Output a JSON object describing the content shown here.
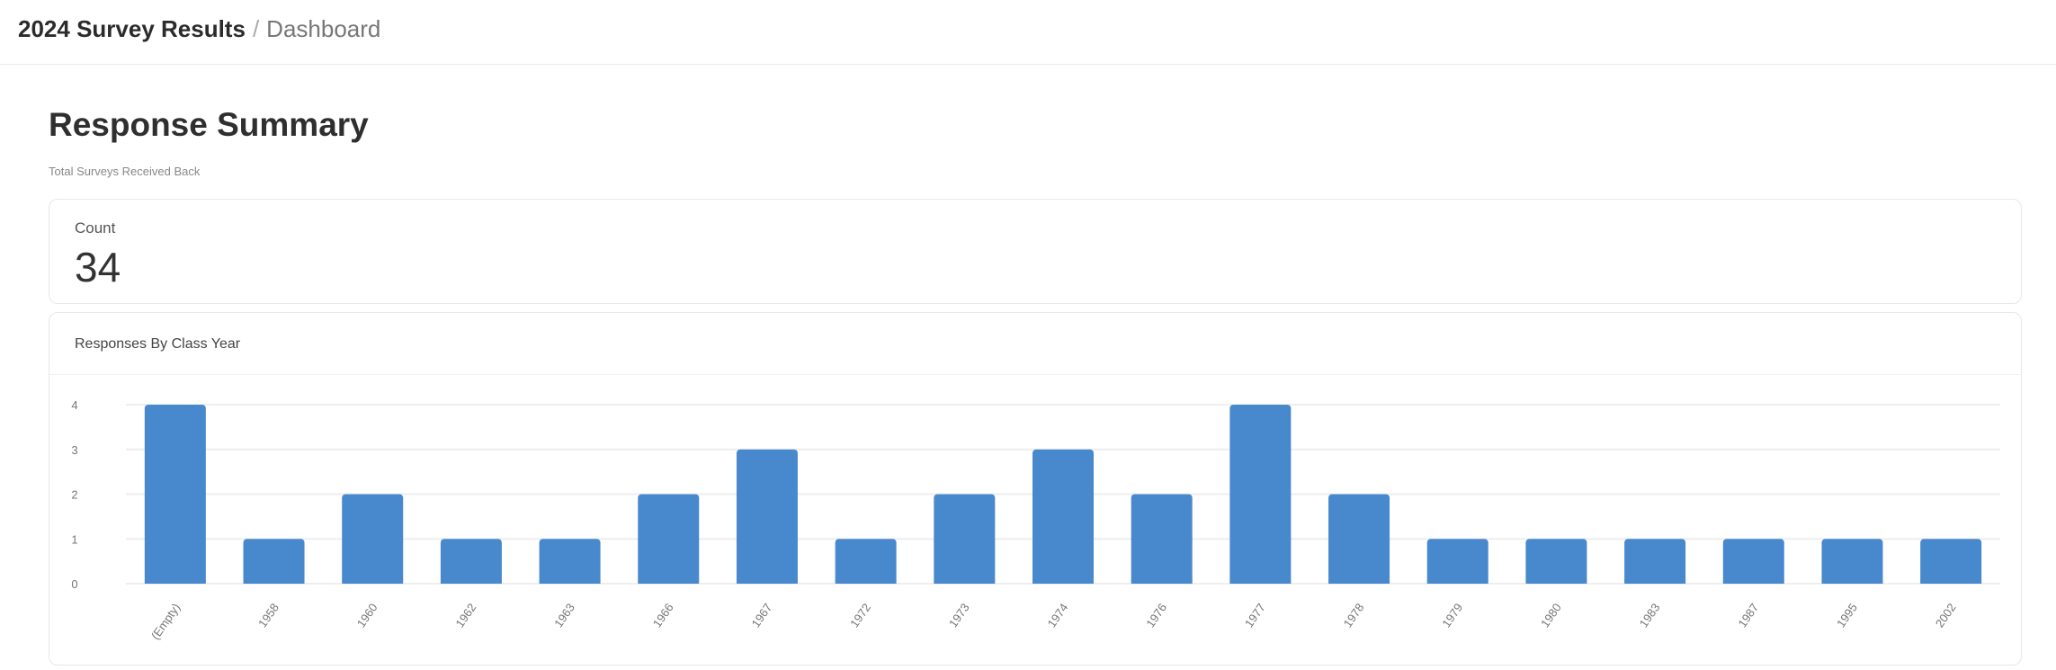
{
  "header": {
    "app_title": "2024 Survey Results",
    "separator": "/",
    "page": "Dashboard"
  },
  "main": {
    "title": "Response Summary",
    "subtitle": "Total Surveys Received Back"
  },
  "count_card": {
    "label": "Count",
    "value": "34"
  },
  "chart_card": {
    "title": "Responses By Class Year"
  },
  "colors": {
    "bar": "#4889CE",
    "grid": "#EEEEEE"
  },
  "chart_data": {
    "type": "bar",
    "title": "Responses By Class Year",
    "xlabel": "",
    "ylabel": "",
    "categories": [
      "(Empty)",
      "1958",
      "1960",
      "1962",
      "1963",
      "1966",
      "1967",
      "1972",
      "1973",
      "1974",
      "1976",
      "1977",
      "1978",
      "1979",
      "1980",
      "1983",
      "1987",
      "1995",
      "2002"
    ],
    "values": [
      4,
      1,
      2,
      1,
      1,
      2,
      3,
      1,
      2,
      3,
      2,
      4,
      2,
      1,
      1,
      1,
      1,
      1,
      1
    ],
    "ylim": [
      0,
      4
    ],
    "yticks": [
      0,
      1,
      2,
      3,
      4
    ],
    "grid": true,
    "legend": "none"
  }
}
